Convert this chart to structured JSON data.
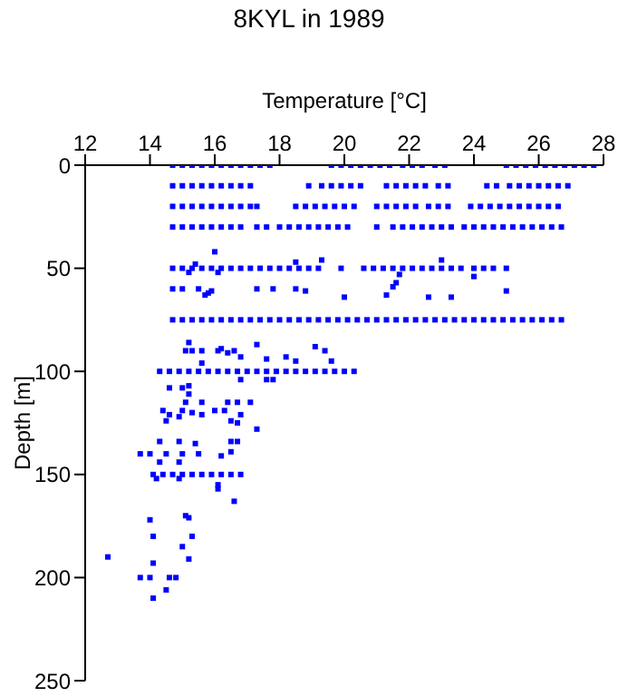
{
  "chart_data": {
    "type": "scatter",
    "title": "8KYL in 1989",
    "xlabel": "Temperature [°C]",
    "ylabel": "Depth [m]",
    "xlim": [
      12,
      28
    ],
    "xticks": [
      12,
      14,
      16,
      18,
      20,
      22,
      24,
      26,
      28
    ],
    "ylim": [
      250,
      0
    ],
    "yticks": [
      0,
      50,
      100,
      150,
      200,
      250
    ],
    "grid": false,
    "legend": false,
    "marker": "square",
    "series": [
      {
        "color": "#0000ff",
        "x": [
          14.7,
          15.0,
          15.3,
          15.6,
          15.9,
          16.2,
          16.5,
          16.8,
          17.1,
          17.4,
          17.7,
          19.6,
          19.9,
          20.2,
          20.5,
          20.8,
          21.1,
          21.4,
          21.8,
          22.1,
          22.4,
          22.8,
          23.1,
          25.0,
          25.3,
          25.6,
          25.9,
          26.2,
          26.5,
          26.8,
          27.1,
          27.4,
          27.7
        ],
        "values": [
          0,
          0,
          0,
          0,
          0,
          0,
          0,
          0,
          0,
          0,
          0,
          0,
          0,
          0,
          0,
          0,
          0,
          0,
          0,
          0,
          0,
          0,
          0,
          0,
          0,
          0,
          0,
          0,
          0,
          0,
          0,
          0,
          0
        ]
      },
      {
        "color": "#0000ff",
        "x": [
          14.7,
          15.0,
          15.3,
          15.6,
          15.9,
          16.2,
          16.5,
          16.8,
          17.1,
          18.9,
          19.3,
          19.6,
          19.9,
          20.2,
          20.5,
          21.3,
          21.6,
          21.9,
          22.2,
          22.5,
          22.9,
          23.2,
          24.4,
          24.7,
          25.1,
          25.4,
          25.7,
          26.0,
          26.3,
          26.6,
          26.9
        ],
        "values": [
          10,
          10,
          10,
          10,
          10,
          10,
          10,
          10,
          10,
          10,
          10,
          10,
          10,
          10,
          10,
          10,
          10,
          10,
          10,
          10,
          10,
          10,
          10,
          10,
          10,
          10,
          10,
          10,
          10,
          10,
          10
        ]
      },
      {
        "color": "#0000ff",
        "x": [
          14.7,
          15.0,
          15.3,
          15.6,
          15.9,
          16.2,
          16.5,
          16.8,
          17.1,
          17.3,
          18.5,
          18.8,
          19.1,
          19.4,
          19.7,
          20.0,
          20.3,
          21.0,
          21.3,
          21.6,
          21.9,
          22.2,
          22.6,
          22.9,
          23.2,
          23.9,
          24.2,
          24.5,
          24.8,
          25.1,
          25.4,
          25.7,
          26.0,
          26.3,
          26.6
        ],
        "values": [
          20,
          20,
          20,
          20,
          20,
          20,
          20,
          20,
          20,
          20,
          20,
          20,
          20,
          20,
          20,
          20,
          20,
          20,
          20,
          20,
          20,
          20,
          20,
          20,
          20,
          20,
          20,
          20,
          20,
          20,
          20,
          20,
          20,
          20,
          20
        ]
      },
      {
        "color": "#0000ff",
        "x": [
          14.7,
          15.0,
          15.3,
          15.6,
          15.9,
          16.2,
          16.5,
          16.8,
          17.3,
          17.6,
          18.0,
          18.3,
          18.6,
          18.9,
          19.2,
          19.5,
          19.8,
          20.1,
          21.0,
          21.5,
          21.8,
          22.1,
          22.4,
          22.7,
          23.0,
          23.3,
          23.7,
          24.0,
          24.3,
          24.6,
          24.9,
          25.2,
          25.5,
          25.8,
          26.1,
          26.4,
          26.7
        ],
        "values": [
          30,
          30,
          30,
          30,
          30,
          30,
          30,
          30,
          30,
          30,
          30,
          30,
          30,
          30,
          30,
          30,
          30,
          30,
          30,
          30,
          30,
          30,
          30,
          30,
          30,
          30,
          30,
          30,
          30,
          30,
          30,
          30,
          30,
          30,
          30,
          30,
          30
        ]
      },
      {
        "color": "#0000ff",
        "x": [
          14.7,
          15.0,
          15.3,
          15.6,
          15.9,
          16.2,
          16.5,
          16.8,
          17.1,
          17.4,
          17.7,
          18.0,
          18.3,
          18.6,
          18.9,
          19.2,
          19.9,
          20.6,
          20.9,
          21.2,
          21.5,
          21.8,
          22.1,
          22.4,
          22.7,
          23.0,
          23.3,
          23.6,
          24.0,
          24.3,
          24.6,
          25.0
        ],
        "values": [
          50,
          50,
          50,
          50,
          50,
          50,
          50,
          50,
          50,
          50,
          50,
          50,
          50,
          50,
          50,
          50,
          50,
          50,
          50,
          50,
          50,
          50,
          50,
          50,
          50,
          50,
          50,
          50,
          50,
          50,
          50,
          50
        ]
      },
      {
        "color": "#0000ff",
        "x": [
          16.0,
          15.4,
          15.2,
          16.1,
          18.5,
          19.3,
          23.0,
          21.7,
          24.0,
          14.7,
          15.0,
          15.5,
          15.9,
          15.7,
          15.8,
          17.3,
          17.8,
          18.5,
          18.8,
          20.0,
          21.3,
          21.6,
          21.5,
          22.6,
          23.3,
          25.0
        ],
        "values": [
          42,
          48,
          52,
          52,
          47,
          46,
          46,
          53,
          54,
          60,
          60,
          60,
          61,
          63,
          62,
          60,
          60,
          60,
          61,
          64,
          63,
          57,
          59,
          64,
          64,
          61
        ]
      },
      {
        "color": "#0000ff",
        "x": [
          14.7,
          15.0,
          15.3,
          15.6,
          15.9,
          16.2,
          16.5,
          16.8,
          17.1,
          17.4,
          17.7,
          18.0,
          18.3,
          18.6,
          18.9,
          19.2,
          19.5,
          19.8,
          20.1,
          20.4,
          20.7,
          21.0,
          21.3,
          21.6,
          21.9,
          22.2,
          22.5,
          22.8,
          23.1,
          23.4,
          23.7,
          24.0,
          24.3,
          24.6,
          24.9,
          25.2,
          25.5,
          25.8,
          26.1,
          26.4,
          26.7
        ],
        "values": [
          75,
          75,
          75,
          75,
          75,
          75,
          75,
          75,
          75,
          75,
          75,
          75,
          75,
          75,
          75,
          75,
          75,
          75,
          75,
          75,
          75,
          75,
          75,
          75,
          75,
          75,
          75,
          75,
          75,
          75,
          75,
          75,
          75,
          75,
          75,
          75,
          75,
          75,
          75,
          75,
          75
        ]
      },
      {
        "color": "#0000ff",
        "x": [
          15.2,
          15.1,
          15.3,
          15.6,
          16.1,
          16.2,
          16.4,
          16.6,
          17.3,
          17.6,
          18.2,
          18.5,
          19.1,
          19.4,
          19.6,
          15.6,
          16.8
        ],
        "values": [
          86,
          90,
          90,
          90,
          90,
          89,
          91,
          90,
          87,
          94,
          93,
          95,
          88,
          90,
          95,
          96,
          93
        ]
      },
      {
        "color": "#0000ff",
        "x": [
          14.3,
          14.6,
          14.9,
          15.2,
          15.5,
          15.8,
          16.1,
          16.4,
          16.7,
          17.0,
          17.3,
          17.6,
          17.9,
          18.2,
          18.5,
          18.8,
          19.1,
          19.4,
          19.7,
          20.0,
          20.3
        ],
        "values": [
          100,
          100,
          100,
          100,
          100,
          100,
          100,
          100,
          100,
          100,
          100,
          100,
          100,
          100,
          100,
          100,
          100,
          100,
          100,
          100,
          100
        ]
      },
      {
        "color": "#0000ff",
        "x": [
          16.8,
          17.6,
          17.8,
          14.6,
          15.0,
          15.2,
          15.2,
          15.1,
          15.6,
          16.4,
          16.7,
          17.1,
          14.4,
          14.6,
          15.0,
          15.3,
          15.6,
          16.0,
          16.3,
          16.8,
          14.5,
          14.9,
          16.5,
          16.7,
          17.3,
          14.3,
          14.9,
          15.4,
          16.5,
          16.7,
          13.7,
          14.0,
          14.5,
          15.0,
          15.5,
          14.3,
          14.9,
          16.2,
          16.5
        ],
        "values": [
          104,
          104,
          104,
          108,
          108,
          107,
          111,
          115,
          115,
          115,
          115,
          115,
          119,
          121,
          119,
          120,
          121,
          119,
          119,
          121,
          124,
          122,
          124,
          125,
          128,
          134,
          134,
          135,
          134,
          134,
          140,
          140,
          140,
          140,
          140,
          144,
          144,
          141,
          139
        ]
      },
      {
        "color": "#0000ff",
        "x": [
          14.1,
          14.4,
          14.7,
          15.0,
          15.3,
          15.6,
          15.9,
          16.2,
          16.5,
          16.8,
          14.2,
          14.9,
          16.1,
          16.6
        ],
        "values": [
          150,
          150,
          150,
          150,
          150,
          150,
          150,
          150,
          150,
          150,
          152,
          152,
          155,
          163
        ]
      },
      {
        "color": "#0000ff",
        "x": [
          14.0,
          14.1,
          14.1,
          15.1,
          15.2,
          15.3,
          15.0,
          15.2,
          12.7,
          13.7,
          14.0,
          14.6,
          14.8,
          14.1,
          14.5,
          16.1
        ],
        "values": [
          172,
          180,
          193,
          170,
          171,
          180,
          185,
          191,
          190,
          200,
          200,
          200,
          200,
          210,
          206,
          157
        ]
      }
    ]
  }
}
